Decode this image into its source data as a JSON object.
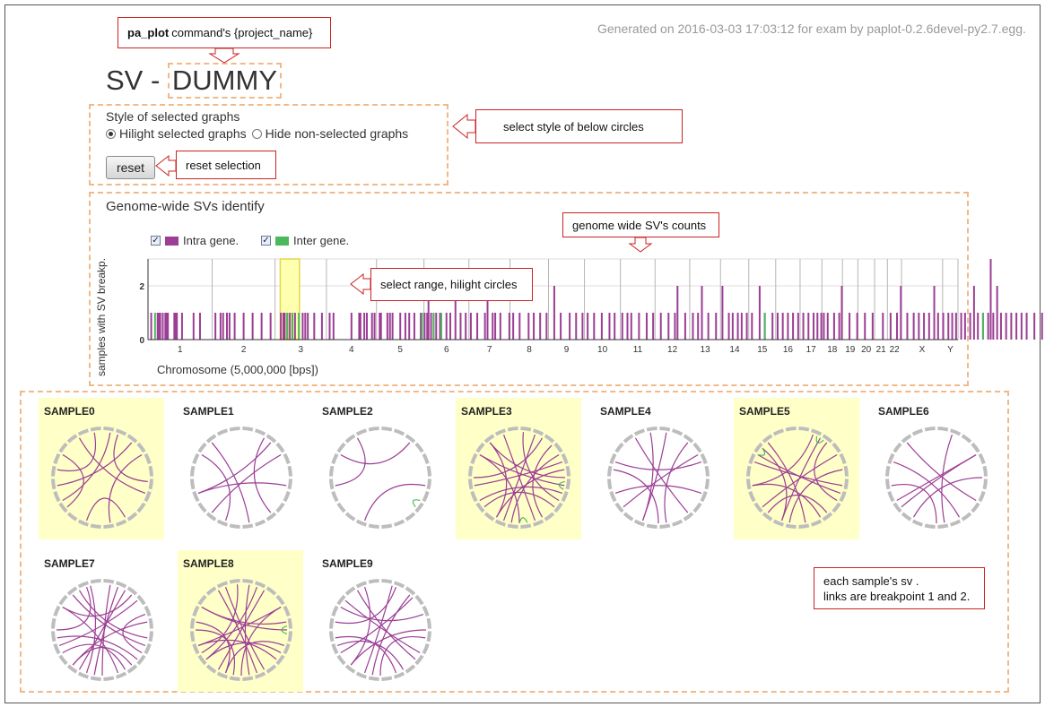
{
  "header": {
    "generated": "Generated on 2016-03-03 17:03:12 for exam by paplot-0.2.6devel-py2.7.egg.",
    "title_prefix": "SV - ",
    "project_name": "DUMMY"
  },
  "style_panel": {
    "label": "Style of selected graphs",
    "option_hilight": "Hilight selected graphs",
    "option_hide": "Hide non-selected graphs",
    "selected": "hilight",
    "reset_label": "reset"
  },
  "genome_panel": {
    "title": "Genome-wide SVs identify",
    "legend": [
      {
        "label": "Intra gene.",
        "color": "#9b3e94",
        "checked": true
      },
      {
        "label": "Inter gene.",
        "color": "#4cb85c",
        "checked": true
      }
    ],
    "ylabel": "samples with SV breakp.",
    "xlabel": "Chromosome (5,000,000 [bps])"
  },
  "annotations": {
    "project": {
      "bold": "pa_plot",
      "rest": "command's {project_name}"
    },
    "style": "select  style of below circles",
    "reset": "reset selection",
    "counts": "genome wide SV's counts",
    "range": "select range, hilight circles",
    "samples_line1": "each sample's sv .",
    "samples_line2": "links are breakpoint 1 and 2."
  },
  "chart_data": {
    "type": "bar",
    "title": "Genome-wide SVs identify",
    "xlabel": "Chromosome (5,000,000 [bps])",
    "ylabel": "samples with SV breakp.",
    "ylim": [
      0,
      3
    ],
    "yticks": [
      0,
      2
    ],
    "chromosomes": [
      "1",
      "2",
      "3",
      "4",
      "5",
      "6",
      "7",
      "8",
      "9",
      "10",
      "11",
      "12",
      "13",
      "14",
      "15",
      "16",
      "17",
      "18",
      "19",
      "20",
      "21",
      "22",
      "X",
      "Y"
    ],
    "chromosome_bins": [
      50,
      49,
      40,
      39,
      37,
      35,
      32,
      30,
      28,
      28,
      27,
      27,
      24,
      22,
      21,
      19,
      17,
      16,
      12,
      13,
      10,
      11,
      32,
      12
    ],
    "series": [
      {
        "name": "Intra gene.",
        "color": "#9b3e94",
        "bars": [
          [
            2,
            1
          ],
          [
            7,
            1
          ],
          [
            8,
            1
          ],
          [
            9,
            1
          ],
          [
            11,
            1
          ],
          [
            13,
            1
          ],
          [
            14,
            1
          ],
          [
            15,
            1
          ],
          [
            20,
            1
          ],
          [
            21,
            1
          ],
          [
            22,
            1
          ],
          [
            26,
            1
          ],
          [
            35,
            1
          ],
          [
            40,
            1
          ],
          [
            52,
            1
          ],
          [
            56,
            1
          ],
          [
            58,
            1
          ],
          [
            61,
            1
          ],
          [
            63,
            1
          ],
          [
            67,
            1
          ],
          [
            74,
            1
          ],
          [
            81,
            1
          ],
          [
            88,
            1
          ],
          [
            95,
            1
          ],
          [
            103,
            1
          ],
          [
            105,
            1
          ],
          [
            106,
            1
          ],
          [
            108,
            1
          ],
          [
            110,
            1
          ],
          [
            114,
            1
          ],
          [
            120,
            1
          ],
          [
            122,
            1
          ],
          [
            124,
            1
          ],
          [
            129,
            1
          ],
          [
            135,
            1
          ],
          [
            141,
            1
          ],
          [
            144,
            1
          ],
          [
            158,
            1
          ],
          [
            164,
            1
          ],
          [
            165,
            1
          ],
          [
            168,
            1
          ],
          [
            170,
            1
          ],
          [
            174,
            1
          ],
          [
            176,
            1
          ],
          [
            180,
            1
          ],
          [
            181,
            1
          ],
          [
            186,
            1
          ],
          [
            188,
            1
          ],
          [
            190,
            1
          ],
          [
            196,
            1
          ],
          [
            200,
            1
          ],
          [
            203,
            1
          ],
          [
            207,
            1
          ],
          [
            212,
            1
          ],
          [
            215,
            1
          ],
          [
            217,
            1
          ],
          [
            218,
            2
          ],
          [
            220,
            1
          ],
          [
            222,
            1
          ],
          [
            224,
            1
          ],
          [
            227,
            1
          ],
          [
            232,
            1
          ],
          [
            235,
            1
          ],
          [
            239,
            2
          ],
          [
            243,
            1
          ],
          [
            247,
            1
          ],
          [
            251,
            1
          ],
          [
            256,
            1
          ],
          [
            262,
            1
          ],
          [
            264,
            2
          ],
          [
            268,
            1
          ],
          [
            270,
            1
          ],
          [
            274,
            1
          ],
          [
            281,
            1
          ],
          [
            284,
            1
          ],
          [
            289,
            1
          ],
          [
            296,
            1
          ],
          [
            300,
            1
          ],
          [
            305,
            1
          ],
          [
            310,
            1
          ],
          [
            316,
            2
          ],
          [
            321,
            1
          ],
          [
            328,
            1
          ],
          [
            333,
            1
          ],
          [
            338,
            1
          ],
          [
            342,
            1
          ],
          [
            347,
            1
          ],
          [
            353,
            1
          ],
          [
            359,
            1
          ],
          [
            363,
            1
          ],
          [
            369,
            1
          ],
          [
            373,
            1
          ],
          [
            376,
            1
          ],
          [
            382,
            1
          ],
          [
            388,
            1
          ],
          [
            393,
            1
          ],
          [
            399,
            1
          ],
          [
            405,
            1
          ],
          [
            410,
            1
          ],
          [
            412,
            2
          ],
          [
            418,
            1
          ],
          [
            424,
            1
          ],
          [
            428,
            1
          ],
          [
            431,
            2
          ],
          [
            436,
            1
          ],
          [
            442,
            1
          ],
          [
            447,
            2
          ],
          [
            452,
            1
          ],
          [
            455,
            1
          ],
          [
            459,
            1
          ],
          [
            462,
            1
          ],
          [
            466,
            1
          ],
          [
            470,
            1
          ],
          [
            476,
            2
          ],
          [
            480,
            1
          ],
          [
            486,
            1
          ],
          [
            490,
            1
          ],
          [
            494,
            1
          ],
          [
            498,
            1
          ],
          [
            502,
            1
          ],
          [
            506,
            1
          ],
          [
            510,
            1
          ],
          [
            514,
            1
          ],
          [
            518,
            1
          ],
          [
            521,
            1
          ],
          [
            524,
            1
          ],
          [
            526,
            1
          ],
          [
            529,
            1
          ],
          [
            534,
            1
          ],
          [
            538,
            1
          ],
          [
            540,
            2
          ],
          [
            546,
            1
          ],
          [
            552,
            1
          ],
          [
            558,
            1
          ],
          [
            564,
            1
          ],
          [
            572,
            1
          ],
          [
            578,
            1
          ],
          [
            583,
            1
          ],
          [
            586,
            2
          ],
          [
            591,
            1
          ],
          [
            596,
            1
          ],
          [
            600,
            1
          ],
          [
            604,
            1
          ],
          [
            608,
            1
          ],
          [
            612,
            2
          ],
          [
            615,
            1
          ],
          [
            619,
            1
          ],
          [
            623,
            1
          ],
          [
            626,
            1
          ],
          [
            629,
            1
          ],
          [
            633,
            1
          ],
          [
            636,
            1
          ],
          [
            640,
            1
          ],
          [
            643,
            2
          ],
          [
            646,
            1
          ],
          [
            650,
            1
          ],
          [
            654,
            1
          ],
          [
            656,
            3
          ],
          [
            658,
            1
          ],
          [
            661,
            2
          ],
          [
            664,
            1
          ],
          [
            668,
            1
          ],
          [
            672,
            1
          ],
          [
            676,
            1
          ],
          [
            680,
            1
          ],
          [
            684,
            1
          ],
          [
            690,
            1
          ],
          [
            696,
            1
          ],
          [
            702,
            1
          ],
          [
            707,
            1
          ],
          [
            712,
            1
          ],
          [
            718,
            1
          ],
          [
            722,
            1
          ],
          [
            728,
            1
          ],
          [
            732,
            1
          ],
          [
            738,
            1
          ],
          [
            743,
            1
          ],
          [
            746,
            2
          ],
          [
            750,
            1
          ],
          [
            754,
            1
          ]
        ]
      },
      {
        "name": "Inter gene.",
        "color": "#4cb85c",
        "bars": [
          [
            5,
            1
          ],
          [
            108,
            1
          ],
          [
            112,
            1
          ],
          [
            117,
            1
          ],
          [
            213,
            1
          ],
          [
            222,
            1
          ],
          [
            228,
            1
          ],
          [
            480,
            1
          ],
          [
            650,
            1
          ]
        ]
      }
    ],
    "selected_range_bins": [
      103,
      118
    ]
  },
  "samples": [
    {
      "name": "SAMPLE0",
      "selected": true
    },
    {
      "name": "SAMPLE1",
      "selected": false
    },
    {
      "name": "SAMPLE2",
      "selected": false
    },
    {
      "name": "SAMPLE3",
      "selected": true
    },
    {
      "name": "SAMPLE4",
      "selected": false
    },
    {
      "name": "SAMPLE5",
      "selected": true
    },
    {
      "name": "SAMPLE6",
      "selected": false
    },
    {
      "name": "SAMPLE7",
      "selected": false
    },
    {
      "name": "SAMPLE8",
      "selected": true
    },
    {
      "name": "SAMPLE9",
      "selected": false
    }
  ],
  "sample_links": [
    {
      "intra": [
        [
          20,
          95
        ],
        [
          150,
          200
        ],
        [
          40,
          260
        ],
        [
          60,
          170
        ],
        [
          110,
          330
        ],
        [
          230,
          300
        ],
        [
          10,
          240
        ],
        [
          280,
          350
        ]
      ],
      "inter": []
    },
    {
      "intra": [
        [
          30,
          140
        ],
        [
          60,
          220
        ],
        [
          100,
          250
        ],
        [
          170,
          320
        ],
        [
          200,
          300
        ],
        [
          250,
          40
        ]
      ],
      "inter": []
    },
    {
      "intra": [
        [
          40,
          300
        ],
        [
          100,
          200
        ],
        [
          260,
          330
        ]
      ],
      "inter": [
        [
          120,
          130
        ]
      ]
    },
    {
      "intra": [
        [
          20,
          200
        ],
        [
          45,
          150
        ],
        [
          70,
          260
        ],
        [
          100,
          300
        ],
        [
          130,
          230
        ],
        [
          160,
          340
        ],
        [
          190,
          60
        ],
        [
          210,
          320
        ],
        [
          240,
          110
        ],
        [
          270,
          30
        ],
        [
          300,
          180
        ],
        [
          320,
          90
        ],
        [
          5,
          120
        ],
        [
          80,
          210
        ]
      ],
      "inter": [
        [
          95,
          105
        ],
        [
          170,
          180
        ]
      ]
    },
    {
      "intra": [
        [
          10,
          200
        ],
        [
          40,
          170
        ],
        [
          70,
          290
        ],
        [
          110,
          250
        ],
        [
          140,
          330
        ],
        [
          180,
          280
        ],
        [
          200,
          350
        ],
        [
          230,
          60
        ]
      ],
      "inter": []
    },
    {
      "intra": [
        [
          20,
          260
        ],
        [
          40,
          120
        ],
        [
          80,
          190
        ],
        [
          110,
          300
        ],
        [
          140,
          220
        ],
        [
          170,
          320
        ],
        [
          200,
          30
        ],
        [
          230,
          60
        ],
        [
          260,
          150
        ],
        [
          290,
          100
        ],
        [
          310,
          200
        ]
      ],
      "inter": [
        [
          25,
          35
        ],
        [
          300,
          310
        ]
      ]
    },
    {
      "intra": [
        [
          20,
          170
        ],
        [
          60,
          230
        ],
        [
          90,
          210
        ],
        [
          120,
          320
        ],
        [
          150,
          290
        ],
        [
          180,
          260
        ],
        [
          240,
          60
        ]
      ],
      "inter": []
    },
    {
      "intra": [
        [
          10,
          180
        ],
        [
          30,
          210
        ],
        [
          50,
          250
        ],
        [
          70,
          120
        ],
        [
          100,
          330
        ],
        [
          130,
          260
        ],
        [
          160,
          300
        ],
        [
          190,
          20
        ],
        [
          220,
          80
        ],
        [
          240,
          150
        ],
        [
          270,
          340
        ],
        [
          300,
          40
        ],
        [
          320,
          110
        ],
        [
          345,
          200
        ],
        [
          140,
          220
        ]
      ],
      "inter": []
    },
    {
      "intra": [
        [
          10,
          170
        ],
        [
          30,
          210
        ],
        [
          60,
          250
        ],
        [
          90,
          300
        ],
        [
          120,
          230
        ],
        [
          150,
          340
        ],
        [
          180,
          60
        ],
        [
          200,
          280
        ],
        [
          230,
          20
        ],
        [
          250,
          130
        ],
        [
          270,
          190
        ],
        [
          300,
          80
        ],
        [
          330,
          160
        ],
        [
          355,
          240
        ],
        [
          110,
          200
        ]
      ],
      "inter": [
        [
          85,
          95
        ]
      ]
    },
    {
      "intra": [
        [
          15,
          200
        ],
        [
          45,
          240
        ],
        [
          70,
          300
        ],
        [
          100,
          180
        ],
        [
          130,
          330
        ],
        [
          160,
          260
        ],
        [
          190,
          40
        ],
        [
          220,
          90
        ],
        [
          250,
          150
        ],
        [
          280,
          20
        ],
        [
          310,
          120
        ],
        [
          340,
          220
        ]
      ],
      "inter": []
    }
  ]
}
